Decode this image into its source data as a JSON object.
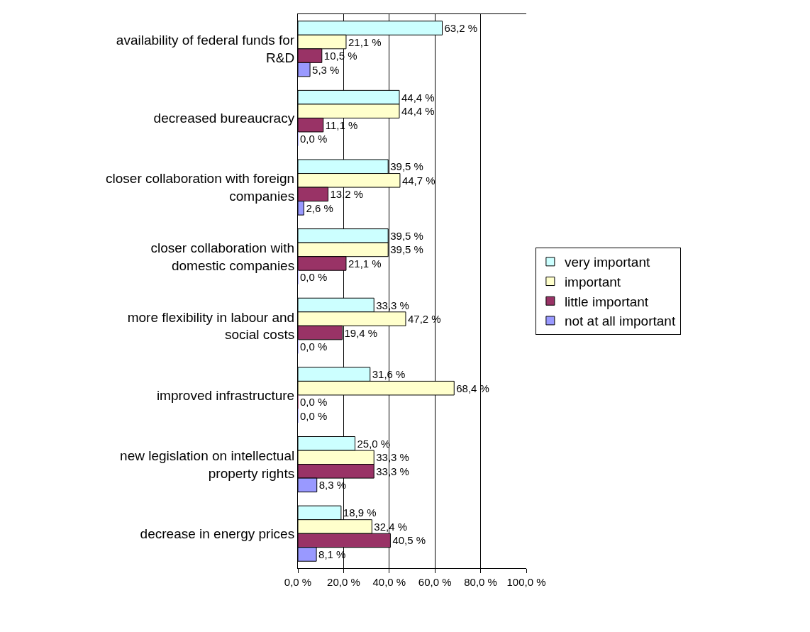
{
  "chart_data": {
    "type": "bar",
    "orientation": "horizontal",
    "categories": [
      "availability of federal funds for R&D",
      "decreased bureaucracy",
      "closer collaboration with foreign companies",
      "closer collaboration with domestic companies",
      "more flexibility in labour and social costs",
      "improved infrastructure",
      "new legislation on intellectual property rights",
      "decrease in energy prices"
    ],
    "series": [
      {
        "name": "very important",
        "color": "#ccffff",
        "values": [
          63.2,
          44.4,
          39.5,
          39.5,
          33.3,
          31.6,
          25.0,
          18.9
        ],
        "value_labels": [
          "63,2 %",
          "44,4 %",
          "39,5 %",
          "39,5 %",
          "33,3 %",
          "31,6 %",
          "25,0 %",
          "18,9 %"
        ]
      },
      {
        "name": "important",
        "color": "#ffffcc",
        "values": [
          21.1,
          44.4,
          44.7,
          39.5,
          47.2,
          68.4,
          33.3,
          32.4
        ],
        "value_labels": [
          "21,1 %",
          "44,4 %",
          "44,7 %",
          "39,5 %",
          "47,2 %",
          "68,4 %",
          "33,3 %",
          "32,4 %"
        ]
      },
      {
        "name": "little important",
        "color": "#993366",
        "values": [
          10.5,
          11.1,
          13.2,
          21.1,
          19.4,
          0.0,
          33.3,
          40.5
        ],
        "value_labels": [
          "10,5 %",
          "11,1 %",
          "13,2 %",
          "21,1 %",
          "19,4 %",
          "0,0 %",
          "33,3 %",
          "40,5 %"
        ]
      },
      {
        "name": "not at all important",
        "color": "#9999ff",
        "values": [
          5.3,
          0.0,
          2.6,
          0.0,
          0.0,
          0.0,
          8.3,
          8.1
        ],
        "value_labels": [
          "5,3 %",
          "0,0 %",
          "2,6 %",
          "0,0 %",
          "0,0 %",
          "0,0 %",
          "8,3 %",
          "8,1 %"
        ]
      }
    ],
    "xlim": [
      0,
      100
    ],
    "xticks": [
      {
        "value": 0,
        "label": "0,0 %"
      },
      {
        "value": 20,
        "label": "20,0 %"
      },
      {
        "value": 40,
        "label": "40,0 %"
      },
      {
        "value": 60,
        "label": "60,0 %"
      },
      {
        "value": 80,
        "label": "80,0 %"
      },
      {
        "value": 100,
        "label": "100,0 %"
      }
    ],
    "grid": "x",
    "legend": "right"
  }
}
